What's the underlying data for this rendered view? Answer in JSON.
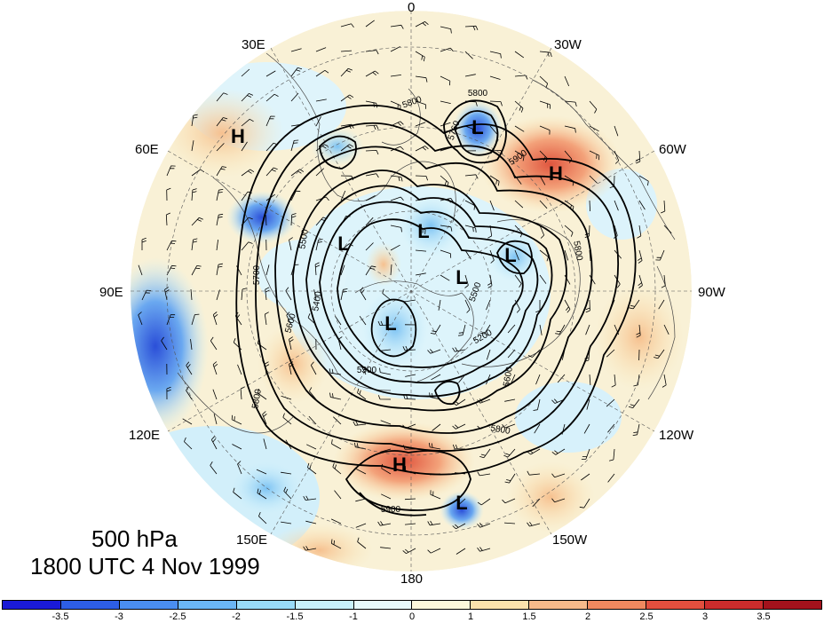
{
  "title": {
    "level": "500 hPa",
    "time": "1800 UTC 4 Nov 1999"
  },
  "longitude_labels": [
    "0",
    "30W",
    "60W",
    "90W",
    "120W",
    "150W",
    "180",
    "150E",
    "120E",
    "90E",
    "60E",
    "30E"
  ],
  "pressure_centers": [
    "H",
    "H",
    "H",
    "L",
    "L",
    "L",
    "L",
    "L",
    "L",
    "L"
  ],
  "contour_labels": [
    "5800",
    "5800",
    "5760",
    "5900",
    "5500",
    "5400",
    "5600",
    "5700",
    "5800",
    "5900",
    "5800",
    "5600",
    "5500",
    "5300",
    "5200",
    "5800"
  ],
  "colorbar": {
    "ticks": [
      "-3.5",
      "-3",
      "-2.5",
      "-2",
      "-1.5",
      "-1",
      "0",
      "1",
      "1.5",
      "2",
      "2.5",
      "3",
      "3.5"
    ],
    "colors": [
      "#1a1ad6",
      "#2d5ee6",
      "#4a8ef0",
      "#6bb6f5",
      "#99dbf8",
      "#c9f0fb",
      "#e8f9fc",
      "#fdf8dc",
      "#fbe2ac",
      "#f7b98a",
      "#f0895f",
      "#e24f3e",
      "#cc2c2c",
      "#a3121c"
    ]
  }
}
